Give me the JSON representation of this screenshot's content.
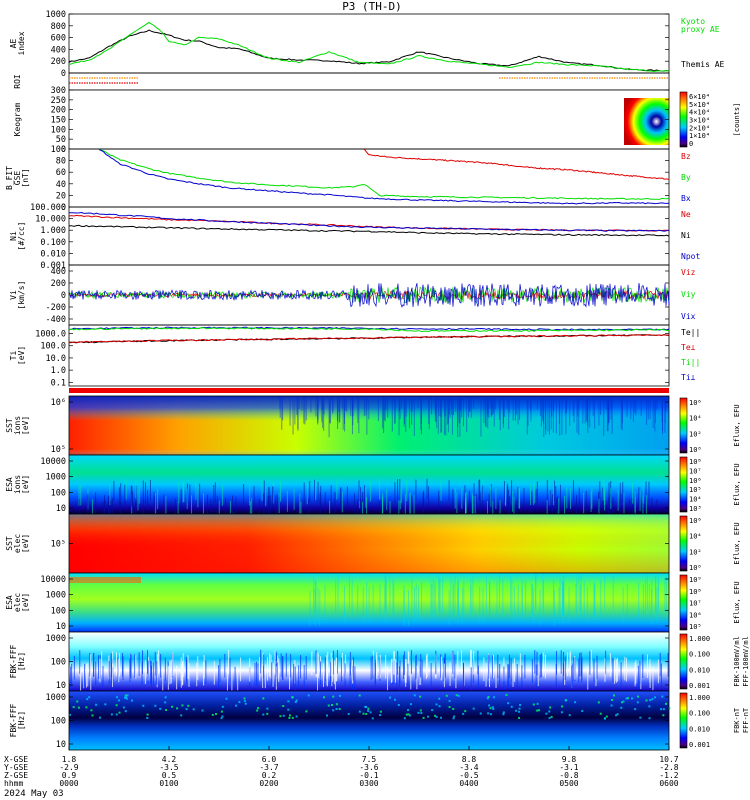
{
  "title": "P3 (TH-D)",
  "date_label": "2024 May 03",
  "time_axis": {
    "row_labels": [
      "X-GSE",
      "Y-GSE",
      "Z-GSE",
      "hhmm"
    ],
    "ticks": [
      {
        "x": "1.8",
        "y": "-2.9",
        "z": "0.9",
        "time": "0000"
      },
      {
        "x": "4.2",
        "y": "-3.5",
        "z": "0.5",
        "time": "0100"
      },
      {
        "x": "6.0",
        "y": "-3.7",
        "z": "0.2",
        "time": "0200"
      },
      {
        "x": "7.5",
        "y": "-3.6",
        "z": "-0.1",
        "time": "0300"
      },
      {
        "x": "8.8",
        "y": "-3.4",
        "z": "-0.5",
        "time": "0400"
      },
      {
        "x": "9.8",
        "y": "-3.1",
        "z": "-0.8",
        "time": "0500"
      },
      {
        "x": "10.7",
        "y": "-2.8",
        "z": "-1.2",
        "time": "0600"
      }
    ]
  },
  "colors": {
    "black": "#000000",
    "red": "#dd0000",
    "green": "#00dd00",
    "blue": "#0000cc",
    "orange": "#ff8800"
  },
  "chart_data": [
    {
      "type": "line",
      "id": "ae",
      "ylabel": "AE index",
      "ylim": [
        0,
        1000
      ],
      "y_ticks": [
        "1000",
        "800",
        "600",
        "400",
        "200",
        "0"
      ],
      "right_labels": [
        "Kyoto proxy AE",
        "Themis AE"
      ],
      "series": [
        {
          "name": "Themis AE",
          "color": "black",
          "x": [
            0,
            0.2,
            0.4,
            0.6,
            0.8,
            1.0,
            1.15,
            1.3,
            1.5,
            1.7,
            2.0,
            2.3,
            2.6,
            2.9,
            3.2,
            3.5,
            3.8,
            4.1,
            4.4,
            4.7,
            5.0,
            5.3,
            5.6,
            5.9,
            6.0
          ],
          "y": [
            190,
            250,
            450,
            620,
            720,
            640,
            560,
            540,
            430,
            410,
            250,
            220,
            210,
            160,
            190,
            360,
            250,
            160,
            120,
            280,
            170,
            130,
            60,
            40,
            40
          ]
        },
        {
          "name": "Kyoto proxy AE",
          "color": "green",
          "x": [
            0,
            0.2,
            0.4,
            0.6,
            0.8,
            0.9,
            1.0,
            1.15,
            1.3,
            1.5,
            1.7,
            2.0,
            2.3,
            2.6,
            2.9,
            3.2,
            3.5,
            3.8,
            4.1,
            4.4,
            4.7,
            5.0,
            5.3,
            5.6,
            5.9,
            6.0
          ],
          "y": [
            150,
            220,
            400,
            640,
            850,
            740,
            540,
            470,
            600,
            580,
            470,
            250,
            180,
            360,
            180,
            150,
            290,
            200,
            150,
            100,
            180,
            140,
            120,
            60,
            30,
            30
          ]
        }
      ]
    },
    {
      "type": "line",
      "id": "roi",
      "ylabel": "ROI",
      "series": [
        {
          "name": "",
          "color": "orange",
          "x": [
            0.0,
            0.7
          ],
          "y": [
            1,
            1
          ]
        },
        {
          "name": "",
          "color": "red",
          "x": [
            0.0,
            0.7
          ],
          "y": [
            0,
            0
          ]
        },
        {
          "name": "",
          "color": "orange",
          "x": [
            4.3,
            6.0
          ],
          "y": [
            1,
            1
          ]
        }
      ]
    },
    {
      "type": "heatmap",
      "id": "keogram",
      "ylabel": "Keogram",
      "ylim": [
        0,
        300
      ],
      "y_ticks": [
        "300",
        "250",
        "200",
        "150",
        "100",
        "50",
        "0"
      ],
      "data_start_hour": 5.55,
      "colorbar": {
        "ticks": [
          "6×10⁴",
          "5×10⁴",
          "4×10⁴",
          "3×10⁴",
          "2×10⁴",
          "1×10⁴",
          "0"
        ],
        "label": "[counts]"
      }
    },
    {
      "type": "line",
      "id": "bfit",
      "ylabel": "B_FIT GSE [nT]",
      "ylim": [
        0,
        100
      ],
      "y_ticks": [
        "100",
        "80",
        "60",
        "40",
        "20",
        "0"
      ],
      "right_labels": [
        "Bz",
        "By",
        "Bx"
      ],
      "series": [
        {
          "name": "Bz",
          "color": "red",
          "x": [
            2.95,
            3.0,
            3.2,
            3.5,
            3.8,
            4.0,
            4.3,
            4.6,
            5.0,
            5.3,
            5.6,
            6.0
          ],
          "y": [
            100,
            90,
            86,
            83,
            80,
            78,
            74,
            68,
            64,
            59,
            54,
            48
          ]
        },
        {
          "name": "By",
          "color": "green",
          "x": [
            0.3,
            0.5,
            0.8,
            1.0,
            1.3,
            1.6,
            2.0,
            2.3,
            2.6,
            2.85,
            2.95,
            3.1,
            3.5,
            4.0,
            4.5,
            5.0,
            5.5,
            6.0
          ],
          "y": [
            100,
            82,
            66,
            58,
            50,
            43,
            38,
            36,
            33,
            35,
            40,
            20,
            18,
            17,
            16,
            15,
            14,
            14
          ]
        },
        {
          "name": "Bx",
          "color": "blue",
          "x": [
            0.3,
            0.5,
            0.8,
            1.0,
            1.3,
            1.6,
            2.0,
            2.3,
            2.6,
            3.0,
            3.5,
            4.0,
            4.5,
            5.0,
            5.5,
            6.0
          ],
          "y": [
            100,
            75,
            57,
            48,
            40,
            33,
            28,
            24,
            21,
            15,
            12,
            10,
            8,
            6,
            7,
            6
          ]
        }
      ]
    },
    {
      "type": "line",
      "id": "ni",
      "ylabel": "Ni [#/cc]",
      "log": true,
      "ylim": [
        0.001,
        100
      ],
      "y_ticks": [
        "100.000",
        "10.000",
        "1.000",
        "0.100",
        "0.010",
        "0.001"
      ],
      "right_labels": [
        "Ne",
        "Ni",
        "Npot"
      ],
      "series": [
        {
          "name": "Ne",
          "color": "red",
          "x": [
            0,
            0.5,
            1,
            1.5,
            2,
            2.5,
            3,
            3.5,
            4,
            4.5,
            5,
            5.5,
            6
          ],
          "y": [
            18,
            12,
            8,
            6,
            4,
            3,
            2,
            1.5,
            1.3,
            1.1,
            1.0,
            1.0,
            0.9
          ]
        },
        {
          "name": "Npot",
          "color": "blue",
          "x": [
            0,
            0.5,
            1,
            1.5,
            2,
            2.5,
            3,
            3.5,
            4,
            4.5,
            5,
            5.5,
            6
          ],
          "y": [
            35,
            20,
            10,
            6,
            4,
            2.5,
            1.8,
            1.5,
            1.3,
            1.1,
            1.0,
            0.9,
            0.9
          ]
        },
        {
          "name": "Ni",
          "color": "black",
          "x": [
            0,
            0.5,
            1,
            1.5,
            2,
            2.5,
            3,
            3.5,
            4,
            4.5,
            5,
            5.5,
            6
          ],
          "y": [
            2.5,
            2.0,
            1.6,
            1.3,
            1.1,
            0.9,
            0.8,
            0.6,
            0.5,
            0.45,
            0.4,
            0.38,
            0.35
          ]
        }
      ]
    },
    {
      "type": "line",
      "id": "vi",
      "ylabel": "Vi [km/s]",
      "ylim": [
        -500,
        500
      ],
      "y_ticks": [
        "400",
        "200",
        "0",
        "-200",
        "-400"
      ],
      "right_labels": [
        "Viz",
        "Viy",
        "Vix"
      ],
      "series": [
        {
          "name": "Viz",
          "color": "red",
          "x": [
            0,
            6
          ],
          "y": [
            0,
            0
          ]
        },
        {
          "name": "Viy",
          "color": "green",
          "x": [
            0,
            6
          ],
          "y": [
            0,
            0
          ]
        },
        {
          "name": "Vix",
          "color": "blue",
          "x": [
            0,
            6
          ],
          "y": [
            0,
            0
          ]
        }
      ]
    },
    {
      "type": "line",
      "id": "ti",
      "ylabel": "Ti [eV]",
      "log": true,
      "ylim": [
        0.05,
        5000
      ],
      "y_ticks": [
        "1000.0",
        "100.0",
        "10.0",
        "1.0",
        "0.1"
      ],
      "right_labels": [
        "Te||",
        "Te⊥",
        "Ti||",
        "Ti⊥"
      ],
      "series": [
        {
          "name": "Ti⊥",
          "color": "blue",
          "x": [
            0,
            0.5,
            1,
            1.5,
            2,
            2.5,
            3,
            3.5,
            4,
            4.5,
            5,
            5.5,
            6
          ],
          "y": [
            2400,
            2800,
            3000,
            3000,
            2900,
            2800,
            2700,
            2400,
            2400,
            2200,
            2100,
            2100,
            2100
          ]
        },
        {
          "name": "Ti||",
          "color": "green",
          "x": [
            0,
            0.5,
            1,
            1.5,
            2,
            2.5,
            3,
            3.5,
            4,
            4.5,
            5,
            5.5,
            6
          ],
          "y": [
            2100,
            2500,
            2700,
            2700,
            2600,
            2500,
            2400,
            1600,
            1700,
            1700,
            1800,
            1900,
            2000
          ]
        },
        {
          "name": "Te||",
          "color": "black",
          "x": [
            0,
            0.5,
            1,
            1.5,
            2,
            2.5,
            3,
            3.5,
            4,
            4.5,
            5,
            5.5,
            6
          ],
          "y": [
            180,
            220,
            260,
            300,
            330,
            380,
            420,
            500,
            550,
            600,
            650,
            700,
            750
          ]
        },
        {
          "name": "Te⊥",
          "color": "red",
          "x": [
            0,
            0.5,
            1,
            1.5,
            2,
            2.5,
            3,
            3.5,
            4,
            4.5,
            5,
            5.5,
            6
          ],
          "y": [
            190,
            230,
            270,
            310,
            340,
            390,
            430,
            510,
            560,
            610,
            660,
            710,
            760
          ]
        }
      ]
    },
    {
      "type": "heatmap",
      "id": "sst_ion",
      "ylabel": "SST ions [eV]",
      "y_ticks": [
        "10⁶",
        "10⁵"
      ],
      "colorbar": {
        "ticks": [
          "10⁶",
          "10⁴",
          "10²",
          "10⁰"
        ],
        "label": "Eflux, EFU"
      }
    },
    {
      "type": "heatmap",
      "id": "esa_ion",
      "ylabel": "ESA ions [eV]",
      "y_ticks": [
        "10000",
        "1000",
        "100",
        "10"
      ],
      "colorbar": {
        "ticks": [
          "10⁸",
          "10⁷",
          "10⁶",
          "10⁵",
          "10⁴",
          "10³"
        ],
        "label": "Eflux, EFU"
      }
    },
    {
      "type": "heatmap",
      "id": "sst_elec",
      "ylabel": "SST elec [eV]",
      "y_ticks": [
        "10⁵"
      ],
      "colorbar": {
        "ticks": [
          "10⁶",
          "10⁴",
          "10²",
          "10⁰"
        ],
        "label": "Eflux, EFU"
      }
    },
    {
      "type": "heatmap",
      "id": "esa_elec",
      "ylabel": "ESA elec [eV]",
      "y_ticks": [
        "10000",
        "1000",
        "100",
        "10"
      ],
      "colorbar": {
        "ticks": [
          "10⁹",
          "10⁸",
          "10⁷",
          "10⁶",
          "10⁵"
        ],
        "label": "Eflux, EFU"
      }
    },
    {
      "type": "heatmap",
      "id": "fbk_fff_e",
      "ylabel": "FBK-FFF [Hz]",
      "y_ticks": [
        "1000",
        "100",
        "10"
      ],
      "colorbar": {
        "ticks": [
          "1.000",
          "0.100",
          "0.010",
          "0.001"
        ],
        "label": "FBK-100mV/ml",
        "label2": "FFF-100mV/ml"
      }
    },
    {
      "type": "heatmap",
      "id": "fbk_fff_b",
      "ylabel": "FBK-FFF [Hz]",
      "y_ticks": [
        "1000",
        "100",
        "10"
      ],
      "colorbar": {
        "ticks": [
          "1.000",
          "0.100",
          "0.010",
          "0.001"
        ],
        "label": "FBK-nT",
        "label2": "FFF-nT"
      }
    }
  ]
}
